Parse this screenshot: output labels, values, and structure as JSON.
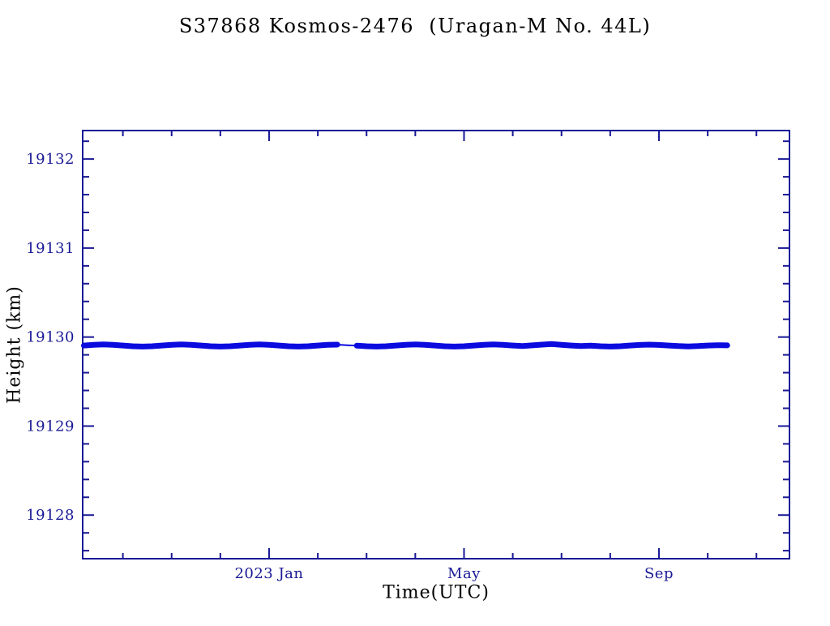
{
  "page": {
    "background": "#ffffff"
  },
  "colors": {
    "ink": "#191996",
    "data": "#0b0be0"
  },
  "header": {
    "title": "S37868 Kosmos-2476  (Uragan-M No. 44L)"
  },
  "chart_data": {
    "type": "line",
    "title": "S37868 Kosmos-2476  (Uragan-M No. 44L)",
    "xlabel": "Time(UTC)",
    "ylabel": "Height (km)",
    "x_unit": "months since 2022-09-01",
    "xlim": [
      0.175,
      14.678
    ],
    "ylim": [
      19127.51,
      19132.32
    ],
    "grid": false,
    "legend": "none",
    "x_ticks_minor": [
      1,
      2,
      3,
      5,
      6,
      7,
      9,
      10,
      11,
      13,
      14
    ],
    "x_ticks_major": [
      {
        "t": 4,
        "label": "2023 Jan"
      },
      {
        "t": 8,
        "label": "May"
      },
      {
        "t": 12,
        "label": "Sep"
      }
    ],
    "y_ticks_minor": [
      19127.6,
      19127.8,
      19128.2,
      19128.4,
      19128.6,
      19128.8,
      19129.2,
      19129.4,
      19129.6,
      19129.8,
      19130.2,
      19130.4,
      19130.6,
      19130.8,
      19131.2,
      19131.4,
      19131.6,
      19131.8,
      19132.2
    ],
    "y_ticks_major": [
      {
        "v": 19128,
        "label": "19128"
      },
      {
        "v": 19129,
        "label": "19129"
      },
      {
        "v": 19130,
        "label": "19130"
      },
      {
        "v": 19131,
        "label": "19131"
      },
      {
        "v": 19132,
        "label": "19132"
      }
    ],
    "series": [
      {
        "name": "height",
        "color": "#0b0be0",
        "summary": "Near-constant orbital height of about 19129.9 km from early Sep 2022 through mid Oct 2023",
        "segments": [
          {
            "stroke_px": 7,
            "points": [
              [
                0.2,
                19129.905
              ],
              [
                0.4,
                19129.913
              ],
              [
                0.6,
                19129.917
              ],
              [
                0.8,
                19129.913
              ],
              [
                1.0,
                19129.905
              ],
              [
                1.2,
                19129.897
              ],
              [
                1.4,
                19129.893
              ],
              [
                1.6,
                19129.897
              ],
              [
                1.8,
                19129.905
              ],
              [
                2.0,
                19129.913
              ],
              [
                2.2,
                19129.917
              ],
              [
                2.4,
                19129.913
              ],
              [
                2.6,
                19129.905
              ],
              [
                2.8,
                19129.897
              ],
              [
                3.0,
                19129.893
              ],
              [
                3.2,
                19129.897
              ],
              [
                3.4,
                19129.905
              ],
              [
                3.6,
                19129.913
              ],
              [
                3.8,
                19129.917
              ],
              [
                4.0,
                19129.913
              ],
              [
                4.2,
                19129.905
              ],
              [
                4.4,
                19129.897
              ],
              [
                4.6,
                19129.893
              ],
              [
                4.8,
                19129.897
              ],
              [
                5.0,
                19129.905
              ],
              [
                5.2,
                19129.913
              ],
              [
                5.4,
                19129.915
              ]
            ]
          },
          {
            "stroke_px": 2,
            "points": [
              [
                5.4,
                19129.915
              ],
              [
                5.6,
                19129.909
              ],
              [
                5.8,
                19129.903
              ]
            ]
          },
          {
            "stroke_px": 7,
            "points": [
              [
                5.8,
                19129.903
              ],
              [
                6.0,
                19129.897
              ],
              [
                6.2,
                19129.893
              ],
              [
                6.4,
                19129.897
              ],
              [
                6.6,
                19129.905
              ],
              [
                6.8,
                19129.913
              ],
              [
                7.0,
                19129.917
              ],
              [
                7.2,
                19129.913
              ],
              [
                7.4,
                19129.905
              ],
              [
                7.6,
                19129.897
              ],
              [
                7.8,
                19129.893
              ],
              [
                8.0,
                19129.897
              ],
              [
                8.2,
                19129.905
              ],
              [
                8.4,
                19129.913
              ],
              [
                8.6,
                19129.917
              ],
              [
                8.8,
                19129.913
              ],
              [
                9.0,
                19129.905
              ],
              [
                9.2,
                19129.899
              ],
              [
                9.4,
                19129.907
              ],
              [
                9.6,
                19129.915
              ],
              [
                9.8,
                19129.921
              ],
              [
                10.0,
                19129.913
              ],
              [
                10.2,
                19129.905
              ],
              [
                10.4,
                19129.899
              ],
              [
                10.6,
                19129.903
              ],
              [
                10.8,
                19129.897
              ],
              [
                11.0,
                19129.893
              ],
              [
                11.2,
                19129.897
              ],
              [
                11.4,
                19129.905
              ],
              [
                11.6,
                19129.911
              ],
              [
                11.8,
                19129.915
              ],
              [
                12.0,
                19129.911
              ],
              [
                12.2,
                19129.905
              ],
              [
                12.4,
                19129.899
              ],
              [
                12.6,
                19129.895
              ],
              [
                12.8,
                19129.899
              ],
              [
                13.0,
                19129.905
              ],
              [
                13.2,
                19129.909
              ],
              [
                13.4,
                19129.907
              ]
            ]
          }
        ]
      }
    ]
  }
}
